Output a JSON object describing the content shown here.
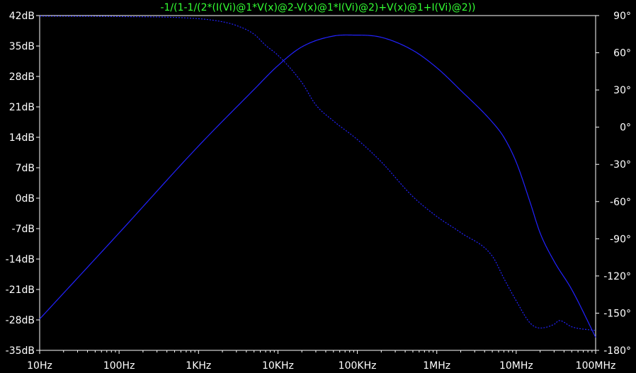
{
  "window": {
    "background": "#000000"
  },
  "chart_data": {
    "type": "line",
    "title": "-1/(1-1/(2*(I(Vi)@1*V(x)@2-V(x)@1*I(Vi)@2)+V(x)@1+I(Vi)@2))",
    "title_color": "#33ff33",
    "axis_color": "#ffffff",
    "x_scale": "log",
    "x_range": [
      10,
      100000000
    ],
    "x_ticks": [
      {
        "value": 10,
        "label": "10Hz"
      },
      {
        "value": 100,
        "label": "100Hz"
      },
      {
        "value": 1000,
        "label": "1KHz"
      },
      {
        "value": 10000,
        "label": "10KHz"
      },
      {
        "value": 100000,
        "label": "100KHz"
      },
      {
        "value": 1000000,
        "label": "1MHz"
      },
      {
        "value": 10000000,
        "label": "10MHz"
      },
      {
        "value": 100000000,
        "label": "100MHz"
      }
    ],
    "y_left_range": [
      -35,
      42
    ],
    "y_left_ticks": [
      {
        "value": 42,
        "label": "42dB"
      },
      {
        "value": 35,
        "label": "35dB"
      },
      {
        "value": 28,
        "label": "28dB"
      },
      {
        "value": 21,
        "label": "21dB"
      },
      {
        "value": 14,
        "label": "14dB"
      },
      {
        "value": 7,
        "label": "7dB"
      },
      {
        "value": 0,
        "label": "0dB"
      },
      {
        "value": -7,
        "label": "-7dB"
      },
      {
        "value": -14,
        "label": "-14dB"
      },
      {
        "value": -21,
        "label": "-21dB"
      },
      {
        "value": -28,
        "label": "-28dB"
      },
      {
        "value": -35,
        "label": "-35dB"
      }
    ],
    "y_right_range": [
      -180,
      90
    ],
    "y_right_ticks": [
      {
        "value": 90,
        "label": "90°"
      },
      {
        "value": 60,
        "label": "60°"
      },
      {
        "value": 30,
        "label": "30°"
      },
      {
        "value": 0,
        "label": "0°"
      },
      {
        "value": -30,
        "label": "-30°"
      },
      {
        "value": -60,
        "label": "-60°"
      },
      {
        "value": -90,
        "label": "-90°"
      },
      {
        "value": -120,
        "label": "-120°"
      },
      {
        "value": -150,
        "label": "-150°"
      },
      {
        "value": -180,
        "label": "-180°"
      }
    ],
    "grid": false,
    "series": [
      {
        "role": "magnitude",
        "axis": "left",
        "style": "solid",
        "color": "#2222ff",
        "x": [
          10,
          100,
          1000,
          5000,
          10000,
          20000,
          50000,
          100000,
          200000,
          500000,
          1000000,
          2000000,
          5000000,
          7000000,
          10000000,
          15000000,
          20000000,
          30000000,
          50000000,
          100000000
        ],
        "y": [
          -27.8,
          -8.0,
          12.0,
          25.0,
          30.5,
          34.8,
          37.3,
          37.5,
          37.0,
          34.0,
          30.0,
          24.8,
          17.5,
          14.0,
          8.3,
          -1.0,
          -8.0,
          -14.5,
          -21.0,
          -32.0
        ]
      },
      {
        "role": "phase",
        "axis": "right",
        "style": "dashed",
        "color": "#2222ff",
        "x": [
          10,
          100,
          1000,
          2000,
          3000,
          5000,
          7000,
          10000,
          20000,
          30000,
          50000,
          100000,
          200000,
          500000,
          1000000,
          2000000,
          5000000,
          7000000,
          10000000,
          15000000,
          20000000,
          30000000,
          35000000,
          50000000,
          100000000
        ],
        "y": [
          89.5,
          89.2,
          87.5,
          85.0,
          82.0,
          75.0,
          66.0,
          58.0,
          36.0,
          18.0,
          5.0,
          -10.0,
          -28.0,
          -56.0,
          -72.0,
          -85.0,
          -104.0,
          -122.0,
          -140.0,
          -158.0,
          -162.0,
          -159.0,
          -156.0,
          -161.0,
          -164.0
        ]
      }
    ]
  }
}
